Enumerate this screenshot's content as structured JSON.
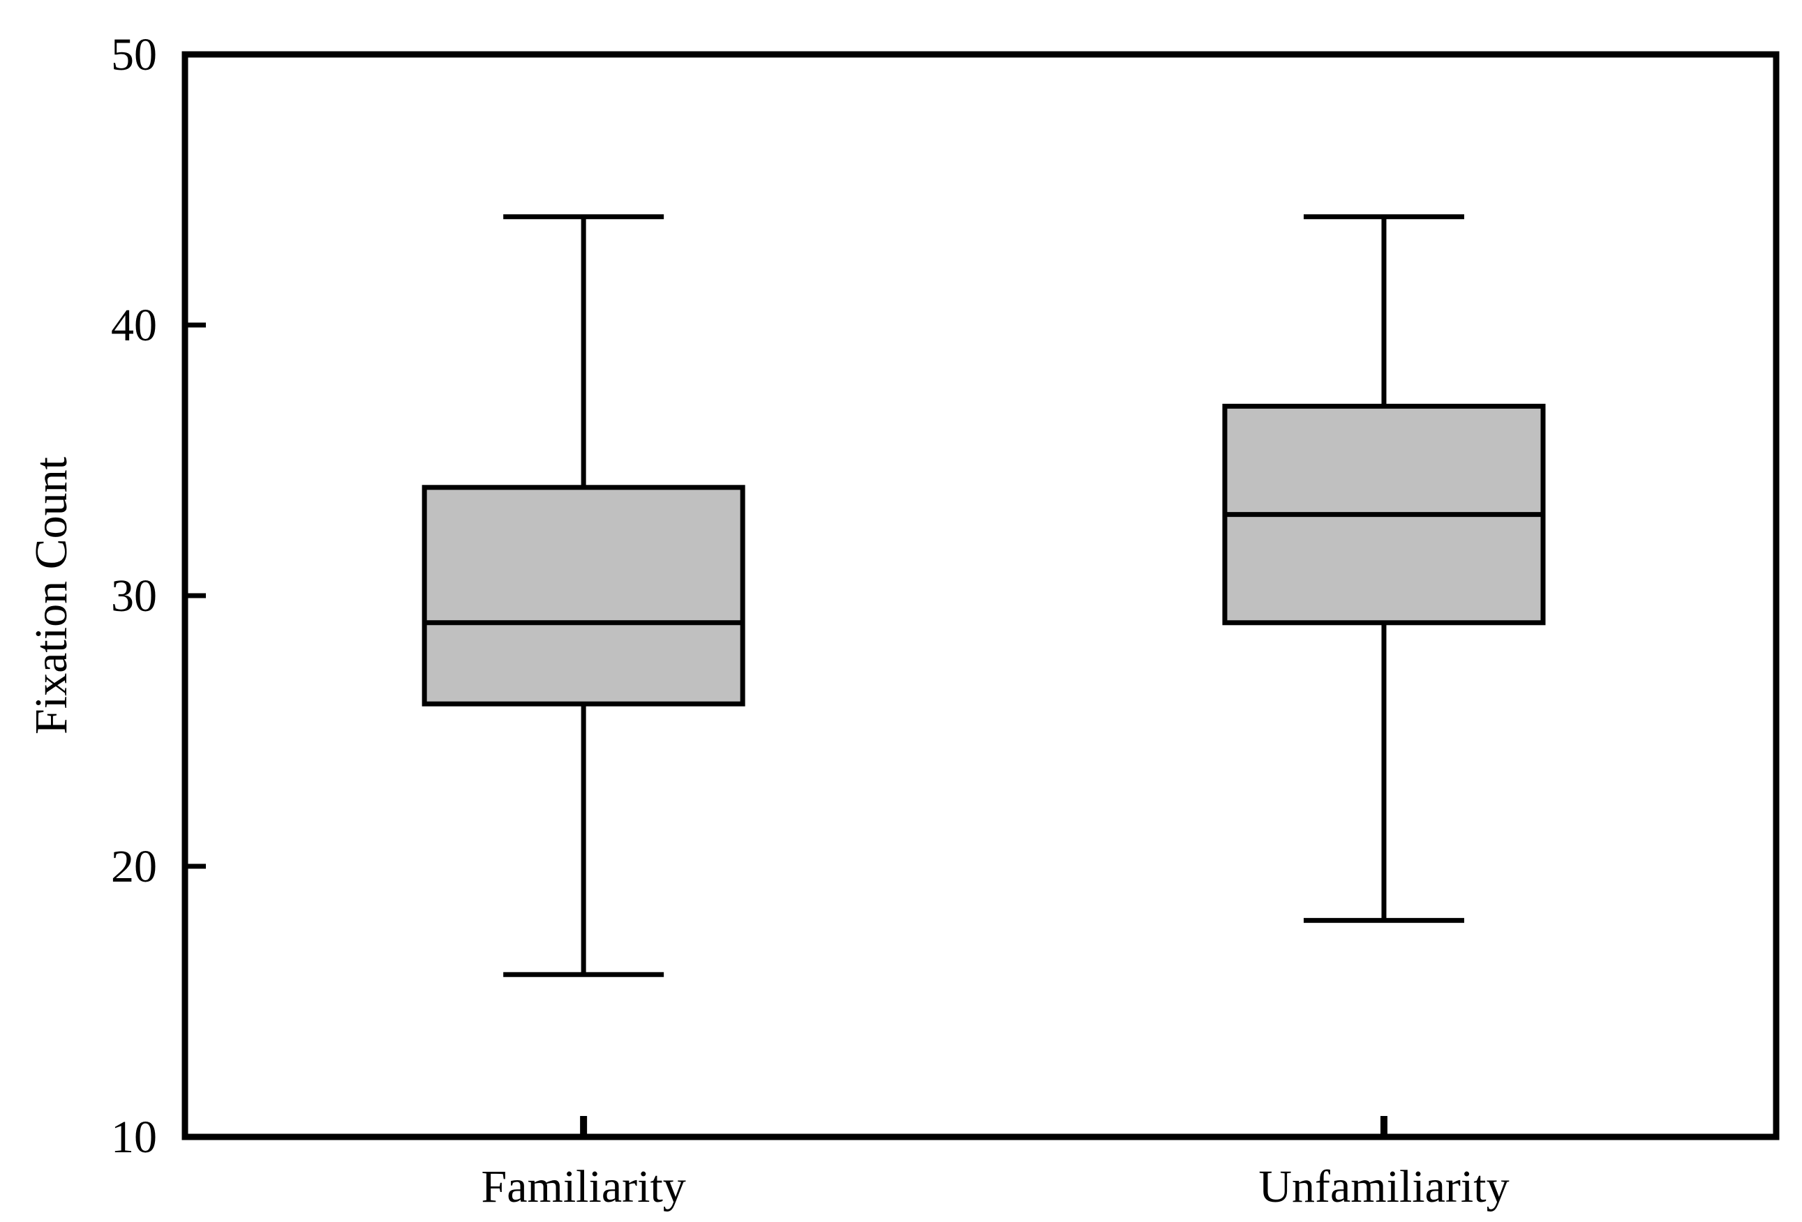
{
  "chart_data": {
    "type": "box",
    "title": "",
    "xlabel": "",
    "ylabel": "Fixation Count",
    "ylim": [
      10,
      50
    ],
    "yticks": [
      10,
      20,
      30,
      40,
      50
    ],
    "grid": false,
    "box_fill": "#c0c0c0",
    "line_color": "#000000",
    "categories": [
      "Familiarity",
      "Unfamiliarity"
    ],
    "boxes": [
      {
        "category": "Familiarity",
        "whisker_low": 16,
        "q1": 26,
        "median": 29,
        "q3": 34,
        "whisker_high": 44
      },
      {
        "category": "Unfamiliarity",
        "whisker_low": 18,
        "q1": 29,
        "median": 33,
        "q3": 37,
        "whisker_high": 44
      }
    ]
  }
}
